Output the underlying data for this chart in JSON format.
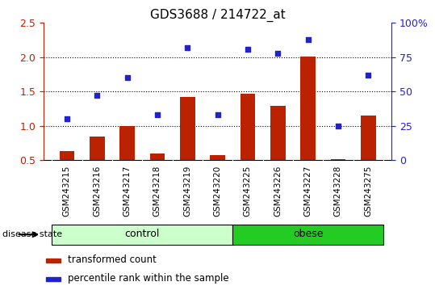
{
  "title": "GDS3688 / 214722_at",
  "samples": [
    "GSM243215",
    "GSM243216",
    "GSM243217",
    "GSM243218",
    "GSM243219",
    "GSM243220",
    "GSM243225",
    "GSM243226",
    "GSM243227",
    "GSM243228",
    "GSM243275"
  ],
  "transformed_count": [
    0.63,
    0.84,
    1.0,
    0.6,
    1.42,
    0.57,
    1.47,
    1.29,
    2.01,
    0.52,
    1.15
  ],
  "percentile_rank": [
    30,
    47,
    60,
    33,
    82,
    33,
    81,
    78,
    88,
    25,
    62
  ],
  "groups": [
    "control",
    "control",
    "control",
    "control",
    "control",
    "control",
    "obese",
    "obese",
    "obese",
    "obese",
    "obese"
  ],
  "ylim_left": [
    0.5,
    2.5
  ],
  "ylim_right": [
    0,
    100
  ],
  "bar_color": "#bb2200",
  "dot_color": "#2222cc",
  "control_color_light": "#ccffcc",
  "control_color": "#44cc44",
  "obese_color": "#22cc22",
  "sample_bg_color": "#cccccc",
  "legend_labels": [
    "transformed count",
    "percentile rank within the sample"
  ],
  "xlabel_label": "disease state",
  "control_label": "control",
  "obese_label": "obese",
  "yticks_left": [
    0.5,
    1.0,
    1.5,
    2.0,
    2.5
  ],
  "yticks_right": [
    0,
    25,
    50,
    75,
    100
  ],
  "ytick_labels_right": [
    "0",
    "25",
    "50",
    "75",
    "100%"
  ],
  "hlines": [
    1.0,
    1.5,
    2.0
  ]
}
